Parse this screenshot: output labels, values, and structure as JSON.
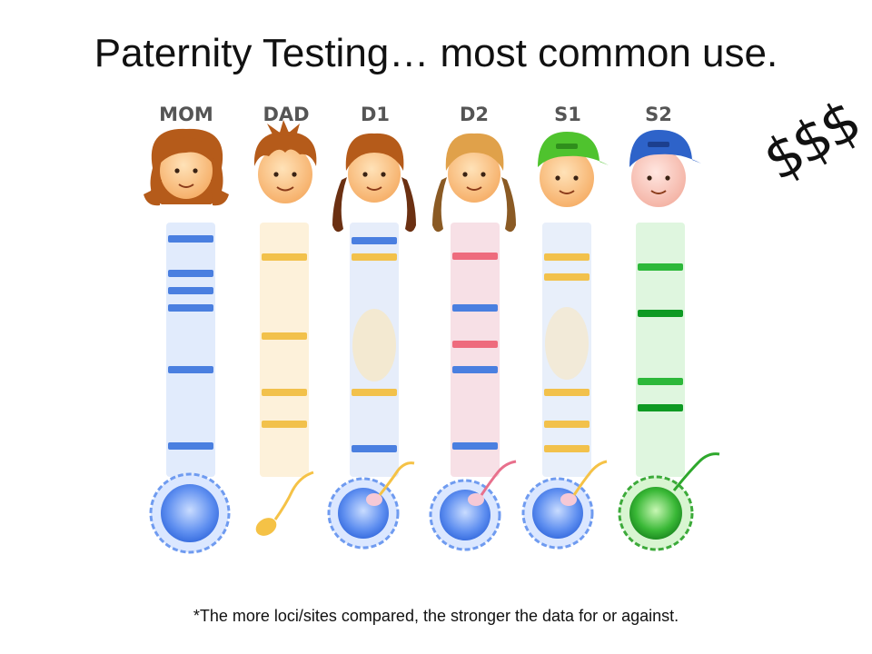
{
  "slide": {
    "title": "Paternity Testing… most common use.",
    "money": "$$$",
    "footnote": "*The more loci/sites compared, the stronger the data for or against."
  },
  "columns": [
    {
      "label": "MOM",
      "person": "mom",
      "color": "#4a7fe0",
      "bands": [
        263,
        301,
        320,
        339,
        407,
        491
      ]
    },
    {
      "label": "DAD",
      "person": "dad",
      "color": "#f2c14b",
      "bands": [
        283,
        370,
        432,
        467
      ]
    },
    {
      "label": "D1",
      "person": "d1",
      "color": "#4a7fe0",
      "bands": [
        265,
        283,
        432,
        494
      ]
    },
    {
      "label": "D2",
      "person": "d2",
      "color": "#4a7fe0",
      "bands": [
        282,
        339,
        379,
        407,
        491
      ]
    },
    {
      "label": "S1",
      "person": "s1",
      "color": "#f2c14b",
      "bands": [
        283,
        305,
        432,
        467,
        494
      ]
    },
    {
      "label": "S2",
      "person": "s2",
      "color": "#2db83a",
      "bands": [
        294,
        345,
        420,
        449
      ]
    }
  ]
}
